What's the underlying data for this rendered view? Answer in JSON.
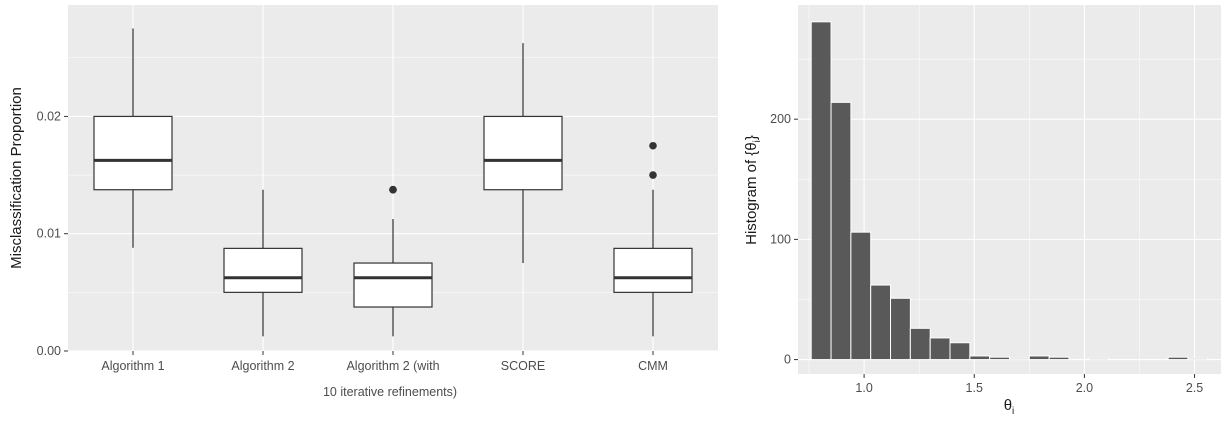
{
  "colors": {
    "panel_background": "#ebebeb",
    "grid": "#ffffff",
    "box_fill": "#ffffff",
    "box_line": "#333333",
    "outlier": "#333333",
    "hist_fill": "#595959",
    "hist_border": "#ffffff"
  },
  "chart_data": [
    {
      "type": "box",
      "title": "",
      "xlabel_line1": "",
      "xlabel_line2": "10 iterative refinements)",
      "ylabel": "Misclassification Proportion",
      "ylim": [
        0,
        0.0295
      ],
      "yticks": [
        0,
        0.01,
        0.02
      ],
      "yticklabels": [
        "0.00",
        "0.01",
        "0.02"
      ],
      "grid": true,
      "categories": [
        "Algorithm 1",
        "Algorithm 2",
        "Algorithm 2 (with",
        "SCORE",
        "CMM"
      ],
      "boxes": [
        {
          "label": "Algorithm 1",
          "whisker_low": 0.0088,
          "q1": 0.01375,
          "median": 0.01625,
          "q3": 0.02,
          "whisker_high": 0.0275,
          "outliers": []
        },
        {
          "label": "Algorithm 2",
          "whisker_low": 0.00125,
          "q1": 0.005,
          "median": 0.00625,
          "q3": 0.00875,
          "whisker_high": 0.01375,
          "outliers": []
        },
        {
          "label": "Algorithm 2 (with",
          "whisker_low": 0.00125,
          "q1": 0.00375,
          "median": 0.00625,
          "q3": 0.0075,
          "whisker_high": 0.01125,
          "outliers": [
            0.01375,
            0.01375
          ]
        },
        {
          "label": "SCORE",
          "whisker_low": 0.0075,
          "q1": 0.01375,
          "median": 0.01625,
          "q3": 0.02,
          "whisker_high": 0.02625,
          "outliers": []
        },
        {
          "label": "CMM",
          "whisker_low": 0.00125,
          "q1": 0.005,
          "median": 0.00625,
          "q3": 0.00875,
          "whisker_high": 0.01375,
          "outliers": [
            0.015,
            0.0175
          ]
        }
      ]
    },
    {
      "type": "bar",
      "subtype": "histogram",
      "title": "",
      "xlabel": "θ",
      "xlabel_sub": "i",
      "ylabel": "Histogram of {θ",
      "ylabel_sub": "i",
      "ylabel_end": "}",
      "xlim": [
        0.7,
        2.62
      ],
      "ylim": [
        -12,
        295
      ],
      "xticks": [
        1.0,
        1.5,
        2.0,
        2.5
      ],
      "xticklabels": [
        "1.0",
        "1.5",
        "2.0",
        "2.5"
      ],
      "yticks": [
        0,
        100,
        200
      ],
      "yticklabels": [
        "0",
        "100",
        "200"
      ],
      "grid": true,
      "bin_width": 0.09,
      "bins": [
        {
          "x0": 0.76,
          "x1": 0.85,
          "count": 281
        },
        {
          "x0": 0.85,
          "x1": 0.94,
          "count": 214
        },
        {
          "x0": 0.94,
          "x1": 1.03,
          "count": 106
        },
        {
          "x0": 1.03,
          "x1": 1.12,
          "count": 62
        },
        {
          "x0": 1.12,
          "x1": 1.21,
          "count": 51
        },
        {
          "x0": 1.21,
          "x1": 1.3,
          "count": 26
        },
        {
          "x0": 1.3,
          "x1": 1.39,
          "count": 18
        },
        {
          "x0": 1.39,
          "x1": 1.48,
          "count": 14
        },
        {
          "x0": 1.48,
          "x1": 1.57,
          "count": 3
        },
        {
          "x0": 1.57,
          "x1": 1.66,
          "count": 2
        },
        {
          "x0": 1.66,
          "x1": 1.75,
          "count": 1
        },
        {
          "x0": 1.75,
          "x1": 1.84,
          "count": 3
        },
        {
          "x0": 1.84,
          "x1": 1.93,
          "count": 2
        },
        {
          "x0": 1.93,
          "x1": 2.02,
          "count": 0
        },
        {
          "x0": 2.02,
          "x1": 2.11,
          "count": 1
        },
        {
          "x0": 2.11,
          "x1": 2.2,
          "count": 0
        },
        {
          "x0": 2.2,
          "x1": 2.29,
          "count": 0
        },
        {
          "x0": 2.29,
          "x1": 2.38,
          "count": 0
        },
        {
          "x0": 2.38,
          "x1": 2.47,
          "count": 2
        },
        {
          "x0": 2.47,
          "x1": 2.56,
          "count": 1
        }
      ]
    }
  ]
}
